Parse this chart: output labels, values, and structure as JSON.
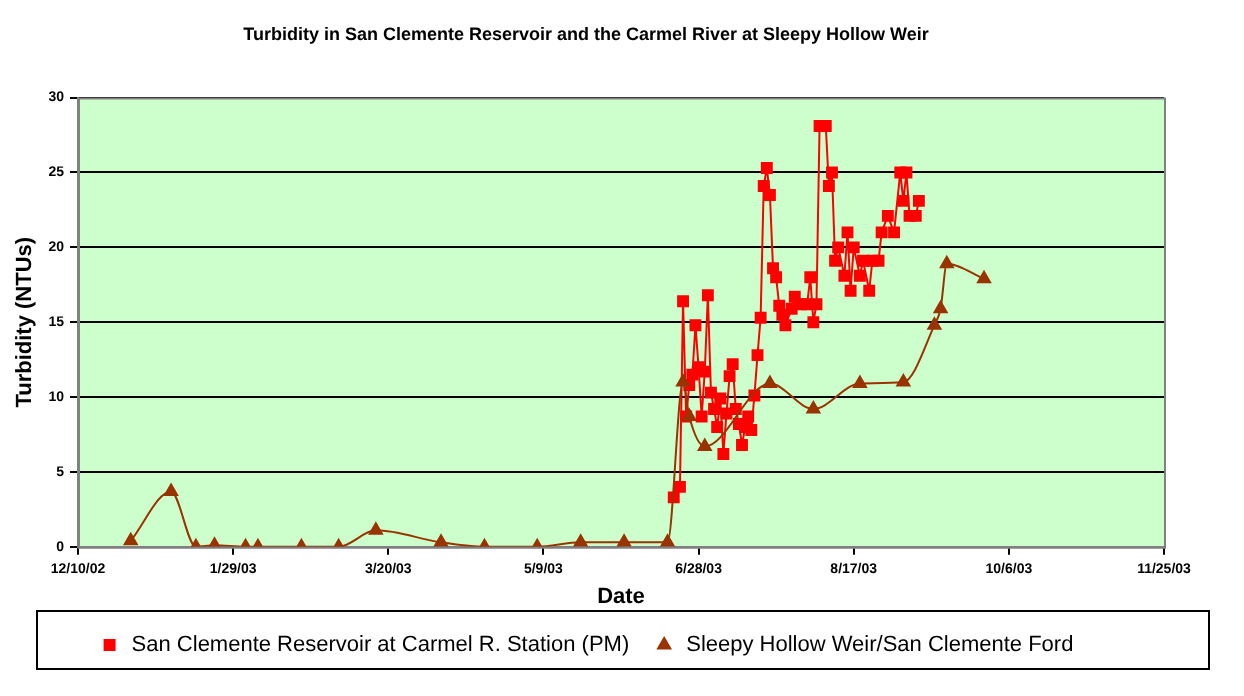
{
  "chart_data": {
    "type": "line",
    "title": "Turbidity in San Clemente Reservoir and the Carmel River at Sleepy Hollow Weir",
    "xlabel": "Date",
    "ylabel": "Turbidity (NTUs)",
    "xlim": [
      "2002-12-10",
      "2003-11-25"
    ],
    "xticks": [
      {
        "value": "2002-12-10",
        "label": "12/10/02"
      },
      {
        "value": "2003-01-29",
        "label": "1/29/03"
      },
      {
        "value": "2003-03-20",
        "label": "3/20/03"
      },
      {
        "value": "2003-05-09",
        "label": "5/9/03"
      },
      {
        "value": "2003-06-28",
        "label": "6/28/03"
      },
      {
        "value": "2003-08-17",
        "label": "8/17/03"
      },
      {
        "value": "2003-10-06",
        "label": "10/6/03"
      },
      {
        "value": "2003-11-25",
        "label": "11/25/03"
      }
    ],
    "ylim": [
      0,
      30
    ],
    "yticks": [
      0,
      5,
      10,
      15,
      20,
      25,
      30
    ],
    "grid": "y",
    "legend": "bottom",
    "series": [
      {
        "name": "San Clemente Reservoir at Carmel R. Station (PM)",
        "color": "#ff0000",
        "marker": "square",
        "x": [
          "2003-06-20",
          "2003-06-22",
          "2003-06-23",
          "2003-06-24",
          "2003-06-25",
          "2003-06-26",
          "2003-06-27",
          "2003-06-28",
          "2003-06-29",
          "2003-06-30",
          "2003-07-01",
          "2003-07-02",
          "2003-07-03",
          "2003-07-04",
          "2003-07-05",
          "2003-07-06",
          "2003-07-07",
          "2003-07-08",
          "2003-07-09",
          "2003-07-10",
          "2003-07-11",
          "2003-07-12",
          "2003-07-13",
          "2003-07-14",
          "2003-07-15",
          "2003-07-16",
          "2003-07-17",
          "2003-07-18",
          "2003-07-19",
          "2003-07-20",
          "2003-07-21",
          "2003-07-22",
          "2003-07-23",
          "2003-07-24",
          "2003-07-25",
          "2003-07-26",
          "2003-07-28",
          "2003-07-29",
          "2003-07-31",
          "2003-08-02",
          "2003-08-03",
          "2003-08-04",
          "2003-08-05",
          "2003-08-06",
          "2003-08-08",
          "2003-08-09",
          "2003-08-10",
          "2003-08-11",
          "2003-08-12",
          "2003-08-14",
          "2003-08-15",
          "2003-08-16",
          "2003-08-17",
          "2003-08-19",
          "2003-08-20",
          "2003-08-22",
          "2003-08-23",
          "2003-08-25",
          "2003-08-26",
          "2003-08-28",
          "2003-08-30",
          "2003-09-01",
          "2003-09-02",
          "2003-09-03",
          "2003-09-04",
          "2003-09-06",
          "2003-09-07"
        ],
        "values": [
          3.3,
          4.0,
          16.4,
          8.7,
          10.8,
          11.5,
          14.8,
          12.0,
          8.7,
          11.7,
          16.8,
          10.3,
          9.2,
          8.0,
          9.9,
          6.2,
          8.9,
          11.4,
          12.2,
          9.2,
          8.2,
          6.8,
          8.0,
          8.7,
          7.8,
          10.1,
          12.8,
          15.3,
          24.1,
          25.3,
          23.5,
          18.6,
          18.0,
          16.1,
          15.5,
          14.8,
          15.9,
          16.7,
          16.2,
          16.2,
          18.0,
          15.0,
          16.2,
          28.1,
          28.1,
          24.1,
          25.0,
          19.1,
          20.0,
          18.1,
          21.0,
          17.1,
          20.0,
          18.1,
          19.1,
          17.1,
          19.1,
          19.1,
          21.0,
          22.1,
          21.0,
          25.0,
          23.1,
          25.0,
          22.1,
          22.1,
          23.1
        ]
      },
      {
        "name": "Sleepy Hollow Weir/San Clemente Ford",
        "color": "#993300",
        "marker": "triangle",
        "x": [
          "2002-12-27",
          "2003-01-09",
          "2003-01-17",
          "2003-01-23",
          "2003-02-02",
          "2003-02-06",
          "2003-02-20",
          "2003-03-04",
          "2003-03-16",
          "2003-04-06",
          "2003-04-20",
          "2003-05-07",
          "2003-05-21",
          "2003-06-04",
          "2003-06-18",
          "2003-06-23",
          "2003-06-25",
          "2003-06-30",
          "2003-07-21",
          "2003-08-04",
          "2003-08-19",
          "2003-09-02",
          "2003-09-12",
          "2003-09-14",
          "2003-09-16",
          "2003-09-28"
        ],
        "values": [
          0.4,
          3.7,
          0,
          0.1,
          0,
          0,
          0,
          0,
          1.1,
          0.3,
          0,
          0,
          0.3,
          0.3,
          0.3,
          11.0,
          8.7,
          6.7,
          10.9,
          9.2,
          10.9,
          11.0,
          14.8,
          15.9,
          18.9,
          17.9
        ]
      }
    ]
  }
}
